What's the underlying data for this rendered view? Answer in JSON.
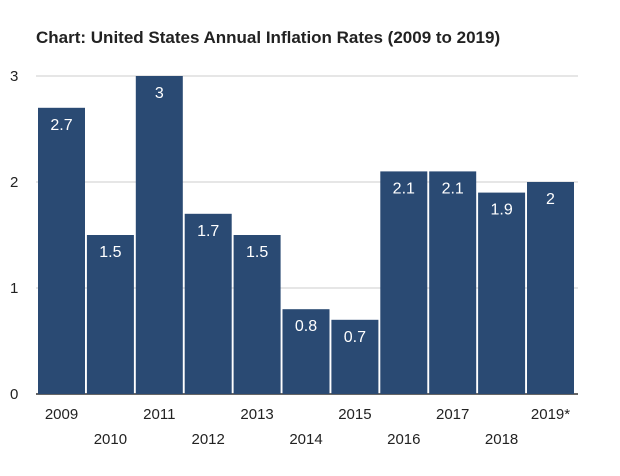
{
  "chart_data": {
    "type": "bar",
    "title": "Chart: United States Annual Inflation Rates (2009 to 2019)",
    "categories": [
      "2009",
      "2010",
      "2011",
      "2012",
      "2013",
      "2014",
      "2015",
      "2016",
      "2017",
      "2018",
      "2019*"
    ],
    "values": [
      2.7,
      1.5,
      3,
      1.7,
      1.5,
      0.8,
      0.7,
      2.1,
      2.1,
      1.9,
      2
    ],
    "value_labels": [
      "2.7",
      "1.5",
      "3",
      "1.7",
      "1.5",
      "0.8",
      "0.7",
      "2.1",
      "2.1",
      "1.9",
      "2"
    ],
    "xlabel": "",
    "ylabel": "",
    "ylim": [
      0,
      3
    ],
    "yticks": [
      "0",
      "1",
      "2",
      "3"
    ],
    "grid": true,
    "bar_color": "#2a4a73",
    "grid_color": "#cccccc"
  }
}
